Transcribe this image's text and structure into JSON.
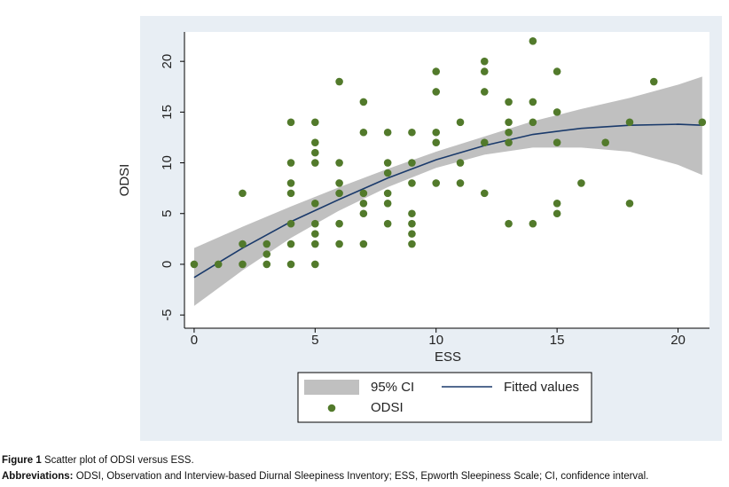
{
  "chart_data": {
    "type": "scatter",
    "x_label": "ESS",
    "y_label": "ODSI",
    "xlim": [
      -0.4,
      21.3
    ],
    "ylim": [
      -6.3,
      22.9
    ],
    "xticks": [
      0,
      5,
      10,
      15,
      20
    ],
    "yticks": [
      -5,
      0,
      5,
      10,
      15,
      20
    ],
    "series": [
      {
        "name": "95% CI",
        "type": "band",
        "color": "#c0c0c0",
        "x": [
          0,
          2,
          4,
          6,
          8,
          10,
          12,
          14,
          16,
          18,
          20,
          21
        ],
        "lower": [
          -4.1,
          -0.6,
          2.6,
          5.3,
          7.6,
          9.5,
          10.8,
          11.5,
          11.5,
          11.1,
          9.8,
          8.8
        ],
        "upper": [
          1.6,
          3.7,
          5.7,
          7.6,
          9.4,
          11.1,
          12.6,
          14.1,
          15.3,
          16.4,
          17.7,
          18.5
        ]
      },
      {
        "name": "Fitted values",
        "type": "line",
        "color": "#1a3a6b",
        "x": [
          0,
          2,
          4,
          6,
          8,
          10,
          12,
          14,
          16,
          18,
          20,
          21
        ],
        "values": [
          -1.3,
          1.6,
          4.2,
          6.4,
          8.5,
          10.3,
          11.7,
          12.8,
          13.4,
          13.7,
          13.8,
          13.7
        ]
      },
      {
        "name": "ODSI",
        "type": "points",
        "color": "#527a2b",
        "x": [
          0,
          1,
          2,
          2,
          2,
          3,
          3,
          3,
          4,
          4,
          4,
          4,
          4,
          4,
          4,
          5,
          5,
          5,
          5,
          5,
          5,
          5,
          5,
          5,
          6,
          6,
          6,
          6,
          6,
          6,
          7,
          7,
          7,
          7,
          7,
          7,
          8,
          8,
          8,
          8,
          8,
          8,
          9,
          9,
          9,
          9,
          9,
          9,
          9,
          10,
          10,
          10,
          10,
          10,
          11,
          11,
          11,
          12,
          12,
          12,
          12,
          12,
          13,
          13,
          13,
          13,
          13,
          14,
          14,
          14,
          14,
          15,
          15,
          15,
          15,
          15,
          16,
          17,
          18,
          18,
          19,
          21
        ],
        "values": [
          0,
          0,
          7,
          2,
          0,
          2,
          1,
          0,
          14,
          10,
          8,
          7,
          4,
          2,
          0,
          14,
          12,
          11,
          10,
          6,
          4,
          3,
          2,
          0,
          18,
          10,
          8,
          7,
          4,
          2,
          16,
          13,
          7,
          6,
          5,
          2,
          13,
          10,
          9,
          7,
          6,
          4,
          13,
          10,
          8,
          5,
          4,
          3,
          2,
          19,
          17,
          13,
          12,
          8,
          14,
          10,
          8,
          20,
          19,
          17,
          12,
          7,
          16,
          14,
          13,
          12,
          4,
          22,
          16,
          14,
          4,
          19,
          15,
          12,
          6,
          5,
          8,
          12,
          14,
          6,
          18,
          14
        ]
      }
    ]
  },
  "caption": {
    "label": "Figure 1",
    "text": "Scatter plot of ODSI versus ESS.",
    "abbr_label": "Abbreviations:",
    "abbr_text": "ODSI, Observation and Interview-based Diurnal Sleepiness Inventory; ESS, Epworth Sleepiness Scale; CI, confidence interval."
  }
}
